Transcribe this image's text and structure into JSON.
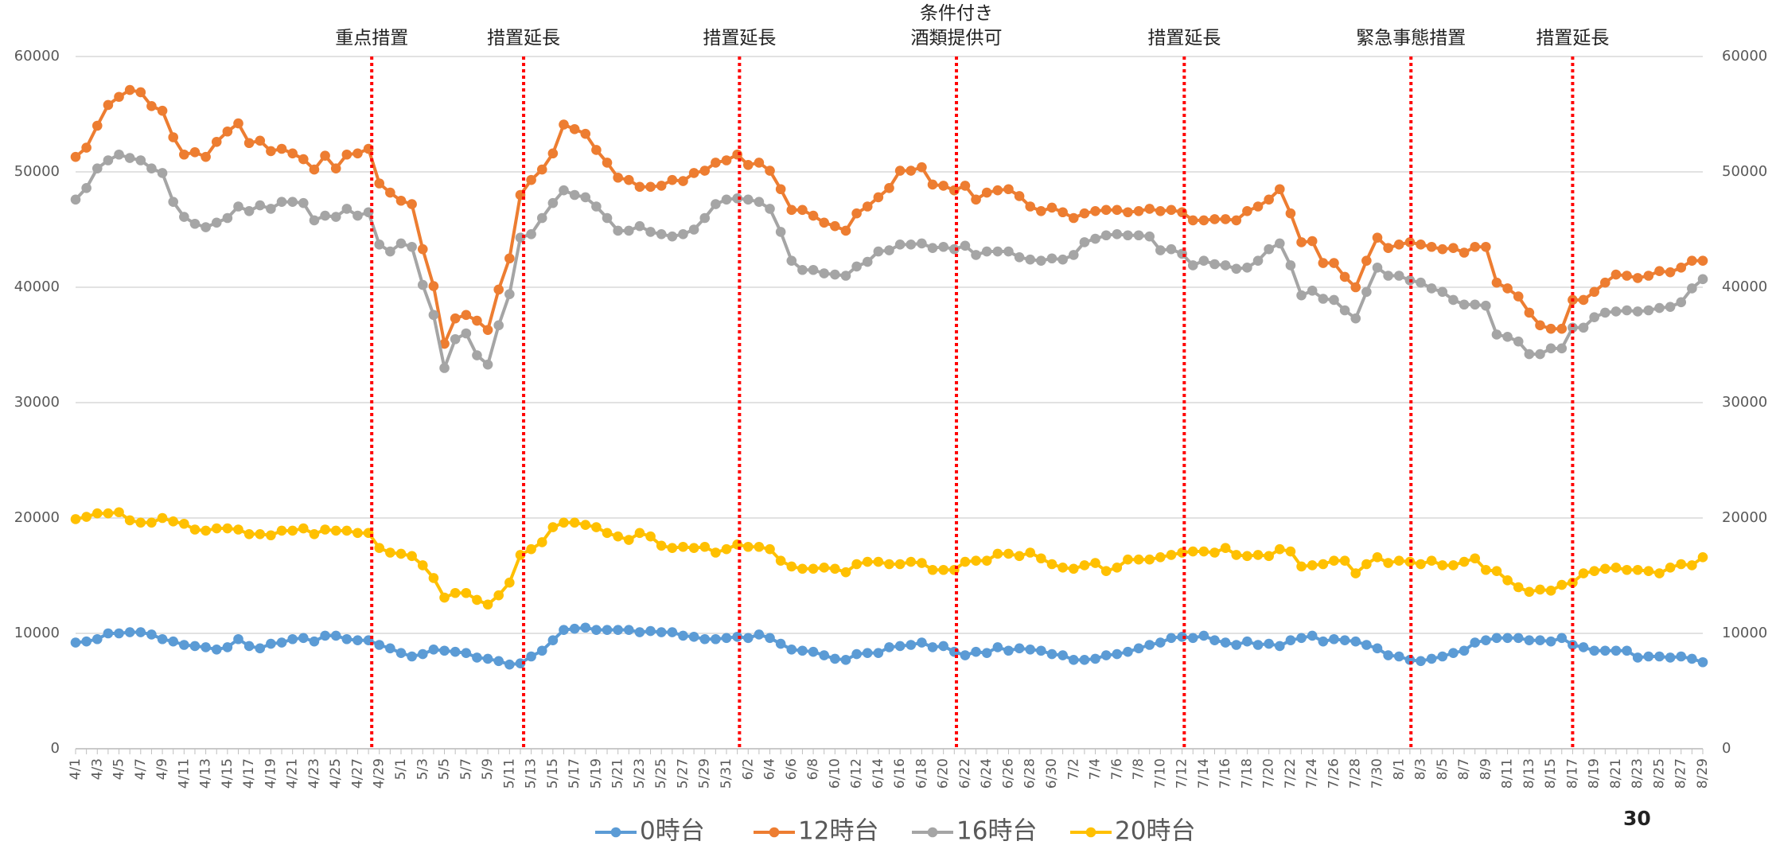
{
  "chart_data": {
    "type": "line",
    "categories": [
      "4/1",
      null,
      "4/3",
      null,
      "4/5",
      null,
      "4/7",
      null,
      "4/9",
      null,
      "4/11",
      null,
      "4/13",
      null,
      "4/15",
      null,
      "4/17",
      null,
      "4/19",
      null,
      "4/21",
      null,
      "4/23",
      null,
      "4/25",
      null,
      "4/27",
      null,
      "4/29",
      null,
      "5/1",
      null,
      "5/3",
      null,
      "5/5",
      null,
      "5/7",
      null,
      "5/9",
      null,
      "5/11",
      null,
      "5/13",
      null,
      "5/15",
      null,
      "5/17",
      null,
      "5/19",
      null,
      "5/21",
      null,
      "5/23",
      null,
      "5/25",
      null,
      "5/27",
      null,
      "5/29",
      null,
      "5/31",
      null,
      "6/2",
      null,
      "6/4",
      null,
      "6/6",
      null,
      "6/8",
      null,
      "6/10",
      null,
      "6/12",
      null,
      "6/14",
      null,
      "6/16",
      null,
      "6/18",
      null,
      "6/20",
      null,
      "6/22",
      null,
      "6/24",
      null,
      "6/26",
      null,
      "6/28",
      null,
      "6/30",
      null,
      "7/2",
      null,
      "7/4",
      null,
      "7/6",
      null,
      "7/8",
      null,
      "7/10",
      null,
      "7/12",
      null,
      "7/14",
      null,
      "7/16",
      null,
      "7/18",
      null,
      "7/20",
      null,
      "7/22",
      null,
      "7/24",
      null,
      "7/26",
      null,
      "7/28",
      null,
      "7/30",
      null,
      "8/1",
      null,
      "8/3",
      null,
      "8/5",
      null,
      "8/7",
      null,
      "8/9",
      null,
      "8/11",
      null,
      "8/13",
      null,
      "8/15",
      null,
      "8/17",
      null,
      "8/19",
      null,
      "8/21",
      null,
      "8/23",
      null,
      "8/25",
      null,
      "8/27",
      null,
      "8/29"
    ],
    "series": [
      {
        "name": "0時台",
        "color": "#5b9bd5",
        "values": [
          9200,
          9300,
          9500,
          10000,
          10000,
          10100,
          10100,
          9900,
          9500,
          9300,
          9000,
          8900,
          8800,
          8600,
          8800,
          9500,
          8900,
          8700,
          9100,
          9200,
          9500,
          9600,
          9300,
          9800,
          9800,
          9500,
          9400,
          9400,
          9000,
          8700,
          8300,
          8000,
          8200,
          8600,
          8500,
          8400,
          8300,
          7900,
          7800,
          7600,
          7300,
          7400,
          8000,
          8500,
          9400,
          10300,
          10400,
          10500,
          10300,
          10300,
          10300,
          10300,
          10100,
          10200,
          10100,
          10100,
          9800,
          9700,
          9500,
          9500,
          9600,
          9700,
          9600,
          9900,
          9600,
          9100,
          8600,
          8500,
          8400,
          8100,
          7800,
          7700,
          8200,
          8300,
          8300,
          8800,
          8900,
          9000,
          9200,
          8800,
          8900,
          8400,
          8100,
          8400,
          8300,
          8800,
          8500,
          8700,
          8600,
          8500,
          8200,
          8100,
          7700,
          7700,
          7800,
          8100,
          8200,
          8400,
          8700,
          9000,
          9200,
          9600,
          9700,
          9600,
          9800,
          9400,
          9200,
          9000,
          9300,
          9000,
          9100,
          8900,
          9400,
          9600,
          9800,
          9300,
          9500,
          9400,
          9300,
          9000,
          8700,
          8100,
          8000,
          7700,
          7600,
          7800,
          8000,
          8300,
          8500,
          9200,
          9400,
          9600,
          9600,
          9600,
          9400,
          9400,
          9300,
          9600,
          9000,
          8800,
          8500,
          8500,
          8500,
          8500,
          7900,
          8000,
          8000,
          7900,
          8000,
          7800,
          7500
        ]
      },
      {
        "name": "12時台",
        "color": "#ed7d31",
        "values": [
          51300,
          52100,
          54000,
          55800,
          56500,
          57100,
          56900,
          55700,
          55300,
          53000,
          51500,
          51700,
          51300,
          52600,
          53500,
          54200,
          52500,
          52700,
          51800,
          52000,
          51600,
          51100,
          50200,
          51400,
          50300,
          51500,
          51600,
          52000,
          49000,
          48200,
          47500,
          47200,
          43300,
          40100,
          35100,
          37300,
          37600,
          37100,
          36300,
          39800,
          42500,
          48000,
          49300,
          50200,
          51600,
          54100,
          53700,
          53300,
          51900,
          50800,
          49500,
          49300,
          48700,
          48700,
          48800,
          49300,
          49200,
          49900,
          50100,
          50800,
          51000,
          51500,
          50600,
          50800,
          50100,
          48500,
          46700,
          46700,
          46200,
          45600,
          45300,
          44900,
          46400,
          47000,
          47800,
          48600,
          50100,
          50100,
          50400,
          48900,
          48800,
          48400,
          48800,
          47600,
          48200,
          48400,
          48500,
          47900,
          47000,
          46600,
          46900,
          46500,
          46000,
          46400,
          46600,
          46700,
          46700,
          46500,
          46600,
          46800,
          46600,
          46700,
          46500,
          45800,
          45800,
          45900,
          45900,
          45800,
          46600,
          47000,
          47600,
          48500,
          46400,
          43900,
          44000,
          42100,
          42100,
          40900,
          40000,
          42300,
          44300,
          43400,
          43700,
          43900,
          43700,
          43500,
          43300,
          43400,
          43000,
          43500,
          43500,
          40400,
          39900,
          39200,
          37800,
          36700,
          36400,
          36400,
          38900,
          38900,
          39600,
          40400,
          41100,
          41000,
          40800,
          41000,
          41400,
          41300,
          41700,
          42300,
          42300
        ]
      },
      {
        "name": "16時台",
        "color": "#a5a5a5",
        "values": [
          47600,
          48600,
          50300,
          51000,
          51500,
          51200,
          51000,
          50300,
          49900,
          47400,
          46100,
          45500,
          45200,
          45600,
          46000,
          47000,
          46600,
          47100,
          46800,
          47400,
          47400,
          47300,
          45800,
          46200,
          46100,
          46800,
          46200,
          46500,
          43700,
          43100,
          43800,
          43500,
          40200,
          37600,
          33000,
          35500,
          36000,
          34100,
          33300,
          36700,
          39400,
          44300,
          44600,
          46000,
          47300,
          48400,
          48000,
          47800,
          47000,
          46000,
          44900,
          44900,
          45300,
          44800,
          44600,
          44400,
          44600,
          45000,
          46000,
          47200,
          47600,
          47700,
          47600,
          47400,
          46800,
          44800,
          42300,
          41500,
          41500,
          41200,
          41100,
          41000,
          41800,
          42200,
          43100,
          43200,
          43700,
          43700,
          43800,
          43400,
          43500,
          43300,
          43600,
          42800,
          43100,
          43100,
          43100,
          42600,
          42400,
          42300,
          42500,
          42400,
          42800,
          43900,
          44200,
          44500,
          44600,
          44500,
          44500,
          44400,
          43200,
          43300,
          42900,
          41900,
          42300,
          42000,
          41900,
          41600,
          41700,
          42300,
          43300,
          43800,
          41900,
          39300,
          39700,
          39000,
          38900,
          38000,
          37300,
          39600,
          41700,
          41000,
          41000,
          40600,
          40400,
          39900,
          39600,
          38900,
          38500,
          38500,
          38400,
          35900,
          35700,
          35300,
          34200,
          34200,
          34700,
          34700,
          36500,
          36500,
          37400,
          37800,
          37900,
          38000,
          37900,
          38000,
          38200,
          38300,
          38700,
          39900,
          40700
        ]
      },
      {
        "name": "20時台",
        "color": "#ffc000",
        "values": [
          19900,
          20100,
          20400,
          20400,
          20500,
          19800,
          19600,
          19600,
          20000,
          19700,
          19500,
          19000,
          18900,
          19100,
          19100,
          19000,
          18600,
          18600,
          18500,
          18900,
          18900,
          19100,
          18600,
          19000,
          18900,
          18900,
          18700,
          18700,
          17400,
          17000,
          16900,
          16700,
          15900,
          14800,
          13100,
          13500,
          13500,
          12900,
          12500,
          13300,
          14400,
          16800,
          17300,
          17900,
          19200,
          19600,
          19600,
          19400,
          19200,
          18700,
          18400,
          18100,
          18700,
          18400,
          17600,
          17400,
          17500,
          17400,
          17500,
          17000,
          17300,
          17700,
          17500,
          17500,
          17300,
          16300,
          15800,
          15600,
          15600,
          15700,
          15600,
          15300,
          16000,
          16200,
          16200,
          16000,
          16000,
          16200,
          16100,
          15500,
          15500,
          15500,
          16200,
          16300,
          16300,
          16900,
          16900,
          16700,
          17000,
          16500,
          16000,
          15700,
          15600,
          15900,
          16100,
          15400,
          15700,
          16400,
          16400,
          16400,
          16600,
          16800,
          17000,
          17100,
          17100,
          17000,
          17400,
          16800,
          16700,
          16800,
          16700,
          17300,
          17100,
          15800,
          15900,
          16000,
          16300,
          16300,
          15200,
          16000,
          16600,
          16100,
          16300,
          16200,
          16000,
          16300,
          15900,
          15900,
          16200,
          16500,
          15500,
          15400,
          14600,
          14000,
          13600,
          13800,
          13700,
          14200,
          14400,
          15200,
          15400,
          15600,
          15700,
          15500,
          15500,
          15400,
          15200,
          15700,
          16000,
          15900,
          16600
        ]
      }
    ],
    "ylim": [
      0,
      60000
    ],
    "yticks": [
      0,
      10000,
      20000,
      30000,
      40000,
      50000,
      60000
    ],
    "y2lim": [
      0,
      60000
    ],
    "y2ticks": [
      0,
      10000,
      20000,
      30000,
      40000,
      50000,
      60000
    ],
    "grid": true,
    "annotations": [
      {
        "text": "重点措置",
        "x": 27.3
      },
      {
        "text": "措置延長",
        "x": 41.3
      },
      {
        "text": "措置延長",
        "x": 61.2
      },
      {
        "text": "条件付き\n酒類提供可",
        "x": 81.2
      },
      {
        "text": "措置延長",
        "x": 102.2
      },
      {
        "text": "緊急事態措置",
        "x": 123.1
      },
      {
        "text": "措置延長",
        "x": 138
      }
    ],
    "annotation_color": "#ff0000",
    "legend": "bottom"
  },
  "page_number": "30"
}
